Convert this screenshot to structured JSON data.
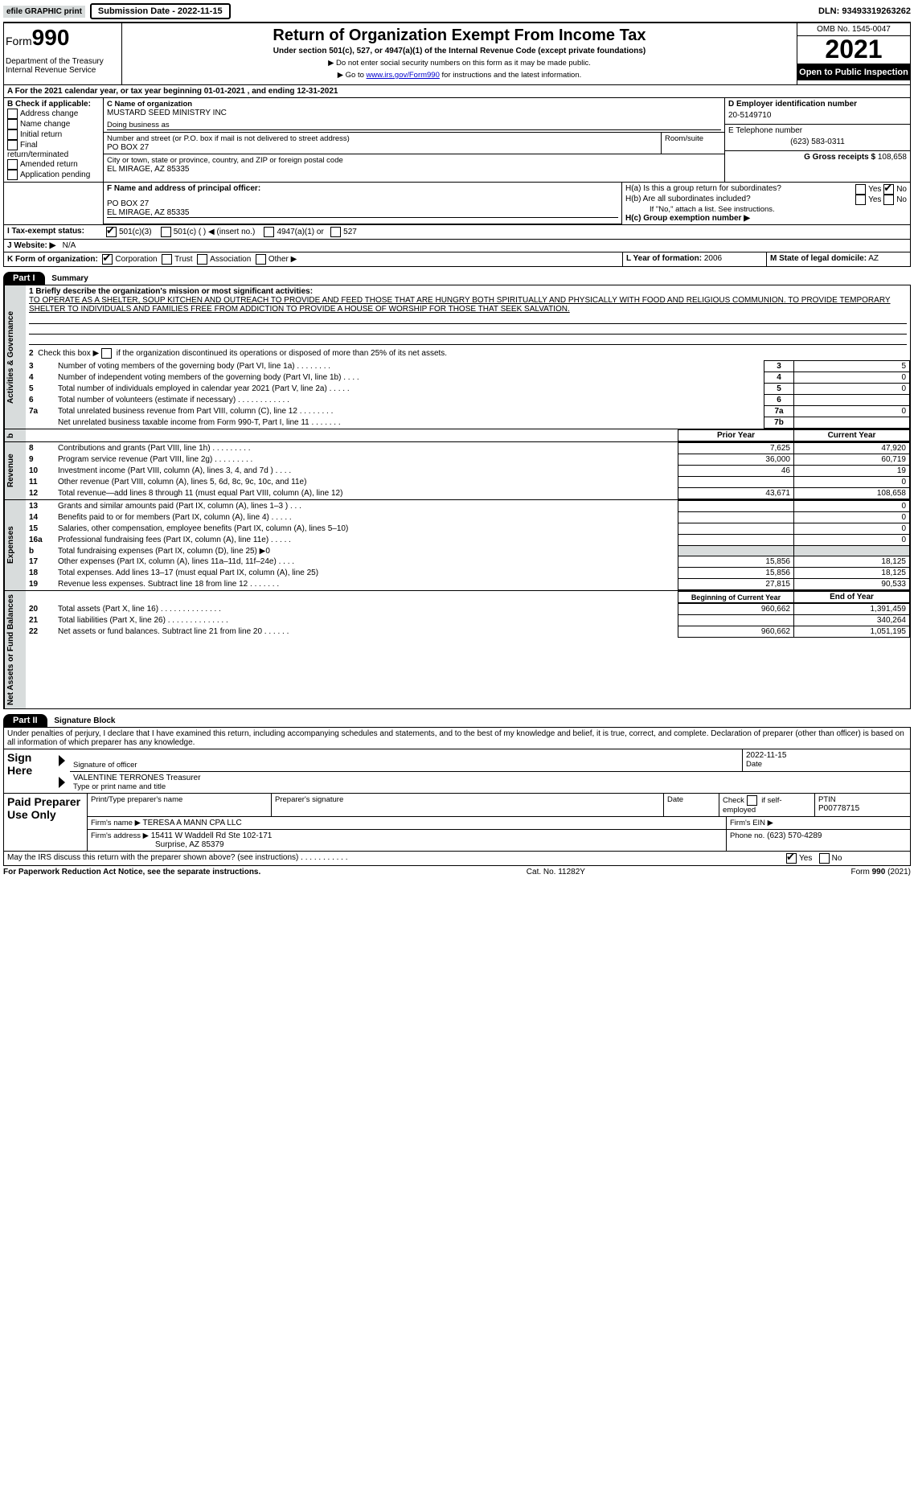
{
  "topbar": {
    "efile_label": "efile GRAPHIC print",
    "submission_btn": "Submission Date - 2022-11-15",
    "dln_label": "DLN: 93493319263262"
  },
  "header": {
    "form_prefix": "Form",
    "form_number": "990",
    "title": "Return of Organization Exempt From Income Tax",
    "subtitle": "Under section 501(c), 527, or 4947(a)(1) of the Internal Revenue Code (except private foundations)",
    "note1": "▶ Do not enter social security numbers on this form as it may be made public.",
    "note2_pre": "▶ Go to ",
    "note2_link": "www.irs.gov/Form990",
    "note2_post": " for instructions and the latest information.",
    "dept": "Department of the Treasury\nInternal Revenue Service",
    "omb": "OMB No. 1545-0047",
    "year": "2021",
    "open": "Open to Public Inspection"
  },
  "blockA": {
    "line_a": "A For the 2021 calendar year, or tax year beginning 01-01-2021    , and ending 12-31-2021",
    "check_label": "B Check if applicable:",
    "checks": [
      "Address change",
      "Name change",
      "Initial return",
      "Final return/terminated",
      "Amended return",
      "Application pending"
    ],
    "c_label": "C Name of organization",
    "org_name": "MUSTARD SEED MINISTRY INC",
    "dba_label": "Doing business as",
    "street_label": "Number and street (or P.O. box if mail is not delivered to street address)",
    "room_label": "Room/suite",
    "street": "PO BOX 27",
    "city_label": "City or town, state or province, country, and ZIP or foreign postal code",
    "city": "EL MIRAGE, AZ  85335",
    "d_label": "D Employer identification number",
    "ein": "20-5149710",
    "e_label": "E Telephone number",
    "phone": "(623) 583-0311",
    "g_label": "G Gross receipts $",
    "gross": "108,658",
    "f_label": "F  Name and address of principal officer:",
    "f_addr1": "PO BOX 27",
    "f_addr2": "EL MIRAGE, AZ  85335",
    "h_a": "H(a)  Is this a group return for subordinates?",
    "h_b": "H(b)  Are all subordinates included?",
    "h_b_note": "If \"No,\" attach a list. See instructions.",
    "h_c": "H(c)  Group exemption number ▶",
    "yes": "Yes",
    "no": "No",
    "i_label": "I  Tax-exempt status:",
    "i_1": "501(c)(3)",
    "i_2": "501(c) (   ) ◀ (insert no.)",
    "i_3": "4947(a)(1) or",
    "i_4": "527",
    "j_label": "J  Website: ▶",
    "website": "N/A",
    "k_label": "K Form of organization:",
    "k_1": "Corporation",
    "k_2": "Trust",
    "k_3": "Association",
    "k_4": "Other ▶",
    "l_label": "L Year of formation:",
    "l_val": "2006",
    "m_label": "M State of legal domicile:",
    "m_val": "AZ"
  },
  "part1": {
    "hdr": "Part I",
    "title": "Summary",
    "q1": "1  Briefly describe the organization's mission or most significant activities:",
    "mission": "TO OPERATE AS A SHELTER, SOUP KITCHEN AND OUTREACH TO PROVIDE AND FEED THOSE THAT ARE HUNGRY BOTH SPIRITUALLY AND PHYSICALLY WITH FOOD AND RELIGIOUS COMMUNION. TO PROVIDE TEMPORARY SHELTER TO INDIVIDUALS AND FAMILIES FREE FROM ADDICTION TO PROVIDE A HOUSE OF WORSHIP FOR THOSE THAT SEEK SALVATION.",
    "q2": "2   Check this box ▶        if the organization discontinued its operations or disposed of more than 25% of its net assets.",
    "rows_gov": [
      {
        "n": "3",
        "t": "Number of voting members of the governing body (Part VI, line 1a)   .    .    .    .    .    .    .    .",
        "b": "3",
        "v": "5"
      },
      {
        "n": "4",
        "t": "Number of independent voting members of the governing body (Part VI, line 1b)   .    .    .    .",
        "b": "4",
        "v": "0"
      },
      {
        "n": "5",
        "t": "Total number of individuals employed in calendar year 2021 (Part V, line 2a)    .    .    .    .    .",
        "b": "5",
        "v": "0"
      },
      {
        "n": "6",
        "t": "Total number of volunteers (estimate if necessary)    .    .    .    .    .    .    .    .    .    .    .    .",
        "b": "6",
        "v": ""
      },
      {
        "n": "7a",
        "t": "Total unrelated business revenue from Part VIII, column (C), line 12    .    .    .    .    .    .    .    .",
        "b": "7a",
        "v": "0"
      },
      {
        "n": "",
        "t": "Net unrelated business taxable income from Form 990-T, Part I, line 11    .    .    .    .    .    .    .",
        "b": "7b",
        "v": ""
      }
    ],
    "col_prior": "Prior Year",
    "col_curr": "Current Year",
    "rows_rev": [
      {
        "n": "8",
        "t": "Contributions and grants (Part VIII, line 1h)    .    .    .    .    .    .    .    .    .",
        "p": "7,625",
        "c": "47,920"
      },
      {
        "n": "9",
        "t": "Program service revenue (Part VIII, line 2g)    .    .    .    .    .    .    .    .    .",
        "p": "36,000",
        "c": "60,719"
      },
      {
        "n": "10",
        "t": "Investment income (Part VIII, column (A), lines 3, 4, and 7d )    .    .    .    .",
        "p": "46",
        "c": "19"
      },
      {
        "n": "11",
        "t": "Other revenue (Part VIII, column (A), lines 5, 6d, 8c, 9c, 10c, and 11e)",
        "p": "",
        "c": "0"
      },
      {
        "n": "12",
        "t": "Total revenue—add lines 8 through 11 (must equal Part VIII, column (A), line 12)",
        "p": "43,671",
        "c": "108,658"
      }
    ],
    "rows_exp": [
      {
        "n": "13",
        "t": "Grants and similar amounts paid (Part IX, column (A), lines 1–3 )    .    .    .",
        "p": "",
        "c": "0"
      },
      {
        "n": "14",
        "t": "Benefits paid to or for members (Part IX, column (A), line 4)    .    .    .    .    .",
        "p": "",
        "c": "0"
      },
      {
        "n": "15",
        "t": "Salaries, other compensation, employee benefits (Part IX, column (A), lines 5–10)",
        "p": "",
        "c": "0"
      },
      {
        "n": "16a",
        "t": "Professional fundraising fees (Part IX, column (A), line 11e)    .    .    .    .    .",
        "p": "",
        "c": "0"
      },
      {
        "n": "b",
        "t": "Total fundraising expenses (Part IX, column (D), line 25) ▶0",
        "p": "grey",
        "c": "grey"
      },
      {
        "n": "17",
        "t": "Other expenses (Part IX, column (A), lines 11a–11d, 11f–24e)    .    .    .    .",
        "p": "15,856",
        "c": "18,125"
      },
      {
        "n": "18",
        "t": "Total expenses. Add lines 13–17 (must equal Part IX, column (A), line 25)",
        "p": "15,856",
        "c": "18,125"
      },
      {
        "n": "19",
        "t": "Revenue less expenses. Subtract line 18 from line 12    .    .    .    .    .    .    .",
        "p": "27,815",
        "c": "90,533"
      }
    ],
    "col_beg": "Beginning of Current Year",
    "col_end": "End of Year",
    "rows_net": [
      {
        "n": "20",
        "t": "Total assets (Part X, line 16)    .    .    .    .    .    .    .    .    .    .    .    .    .    .",
        "p": "960,662",
        "c": "1,391,459"
      },
      {
        "n": "21",
        "t": "Total liabilities (Part X, line 26)    .    .    .    .    .    .    .    .    .    .    .    .    .    .",
        "p": "",
        "c": "340,264"
      },
      {
        "n": "22",
        "t": "Net assets or fund balances. Subtract line 21 from line 20    .    .    .    .    .    .",
        "p": "960,662",
        "c": "1,051,195"
      }
    ]
  },
  "tabs": {
    "gov": "Activities & Governance",
    "rev": "Revenue",
    "exp": "Expenses",
    "net": "Net Assets or Fund Balances",
    "b": "b"
  },
  "part2": {
    "hdr": "Part II",
    "title": "Signature Block",
    "decl": "Under penalties of perjury, I declare that I have examined this return, including accompanying schedules and statements, and to the best of my knowledge and belief, it is true, correct, and complete. Declaration of preparer (other than officer) is based on all information of which preparer has any knowledge.",
    "sign_here": "Sign Here",
    "sig_officer": "Signature of officer",
    "sig_date": "2022-11-15",
    "date_lbl": "Date",
    "officer_name": "VALENTINE TERRONES  Treasurer",
    "type_name": "Type or print name and title",
    "paid": "Paid Preparer Use Only",
    "pt_name_lbl": "Print/Type preparer's name",
    "pt_sig_lbl": "Preparer's signature",
    "pt_date_lbl": "Date",
    "pt_check": "Check          if self-employed",
    "ptin_lbl": "PTIN",
    "ptin": "P00778715",
    "firm_name_lbl": "Firm's name     ▶",
    "firm_name": "TERESA A MANN CPA LLC",
    "firm_ein_lbl": "Firm's EIN ▶",
    "firm_addr_lbl": "Firm's address ▶",
    "firm_addr1": "15411 W Waddell Rd Ste 102-171",
    "firm_addr2": "Surprise, AZ  85379",
    "firm_phone_lbl": "Phone no.",
    "firm_phone": "(623) 570-4289",
    "may_irs": "May the IRS discuss this return with the preparer shown above? (see instructions)   .    .    .    .    .    .    .    .    .    .    .",
    "paperwork": "For Paperwork Reduction Act Notice, see the separate instructions.",
    "cat": "Cat. No. 11282Y",
    "form_foot": "Form 990 (2021)"
  }
}
